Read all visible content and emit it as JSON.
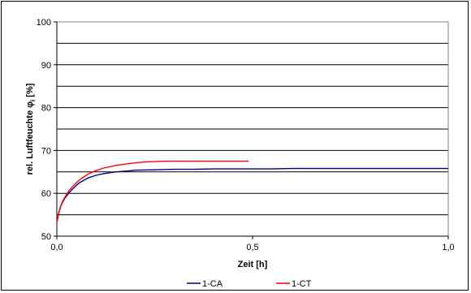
{
  "chart_data": {
    "type": "line",
    "title": "",
    "xlabel": "Zeit [h]",
    "ylabel_prefix": "rel. Luftfeuchte ",
    "ylabel_symbol": "φ",
    "ylabel_sub": "i",
    "ylabel_suffix": " [%]",
    "xlim": [
      0.0,
      1.0
    ],
    "ylim": [
      50,
      100
    ],
    "x_ticks": [
      0.0,
      0.5,
      1.0
    ],
    "x_tick_labels": [
      "0,0",
      "0,5",
      "1,0"
    ],
    "y_ticks": [
      50,
      60,
      70,
      80,
      90,
      100
    ],
    "y_tick_labels": [
      "50",
      "60",
      "70",
      "80",
      "90",
      "100"
    ],
    "y_gridlines": [
      55,
      60,
      65,
      70,
      75,
      80,
      85,
      90,
      95,
      100
    ],
    "legend_position": "bottom",
    "series": [
      {
        "name": "1-CA",
        "color": "#000080",
        "x": [
          0.0,
          0.005,
          0.01,
          0.015,
          0.02,
          0.03,
          0.04,
          0.05,
          0.06,
          0.08,
          0.1,
          0.12,
          0.15,
          0.18,
          0.2,
          0.25,
          0.3,
          0.35,
          0.4,
          0.45,
          0.5,
          0.55,
          0.6,
          0.7,
          0.8,
          0.9,
          1.0
        ],
        "y": [
          53.2,
          55.5,
          57.0,
          58.0,
          58.8,
          60.0,
          61.0,
          61.9,
          62.6,
          63.6,
          64.2,
          64.6,
          65.0,
          65.2,
          65.4,
          65.5,
          65.6,
          65.6,
          65.7,
          65.7,
          65.7,
          65.7,
          65.8,
          65.8,
          65.8,
          65.8,
          65.8
        ]
      },
      {
        "name": "1-CT",
        "color": "#ff0000",
        "x": [
          0.0,
          0.005,
          0.01,
          0.015,
          0.02,
          0.03,
          0.04,
          0.05,
          0.06,
          0.08,
          0.1,
          0.12,
          0.15,
          0.18,
          0.2,
          0.22,
          0.25,
          0.28,
          0.3,
          0.35,
          0.4,
          0.45,
          0.49
        ],
        "y": [
          53.2,
          55.5,
          57.0,
          58.2,
          59.0,
          60.5,
          61.6,
          62.5,
          63.3,
          64.5,
          65.3,
          65.9,
          66.5,
          66.9,
          67.1,
          67.3,
          67.4,
          67.5,
          67.5,
          67.5,
          67.5,
          67.5,
          67.5
        ]
      }
    ]
  }
}
